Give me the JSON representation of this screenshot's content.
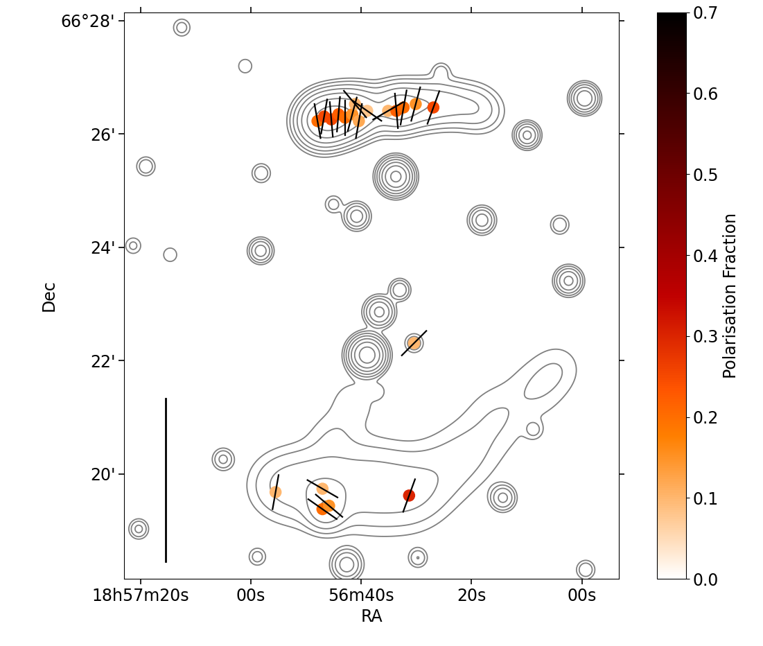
{
  "chart_data": {
    "type": "contour",
    "x_label": "RA",
    "y_label": "Dec",
    "xlim": [
      82.9,
      -6.7
    ],
    "xticks": [
      {
        "value": 80,
        "label": "18h57m20s"
      },
      {
        "value": 60,
        "label": "00s"
      },
      {
        "value": 40,
        "label": "56m40s"
      },
      {
        "value": 20,
        "label": "20s"
      },
      {
        "value": 0,
        "label": "00s"
      }
    ],
    "ylim": [
      18.15,
      28.15
    ],
    "yticks": [
      {
        "value": 28,
        "label": "66°28'"
      },
      {
        "value": 26,
        "label": "26'"
      },
      {
        "value": 24,
        "label": "24'"
      },
      {
        "value": 22,
        "label": "22'"
      },
      {
        "value": 20,
        "label": "20'"
      }
    ],
    "contour_levels": [
      1,
      2,
      4,
      8,
      16,
      32,
      64
    ],
    "color": "#808080",
    "sources": [
      {
        "ra": 47.5,
        "dec": 26.22,
        "peak": 30,
        "size": 0.22
      },
      {
        "ra": 46.4,
        "dec": 26.26,
        "peak": 40,
        "size": 0.22
      },
      {
        "ra": 44.5,
        "dec": 26.3,
        "peak": 35,
        "size": 0.22
      },
      {
        "ra": 42.6,
        "dec": 26.35,
        "peak": 30,
        "size": 0.22
      },
      {
        "ra": 40.5,
        "dec": 26.4,
        "peak": 14,
        "size": 0.22
      },
      {
        "ra": 38.9,
        "dec": 26.41,
        "peak": 8,
        "size": 0.22
      },
      {
        "ra": 35.1,
        "dec": 26.45,
        "peak": 8,
        "size": 0.22
      },
      {
        "ra": 33.0,
        "dec": 26.47,
        "peak": 16,
        "size": 0.22
      },
      {
        "ra": 30.5,
        "dec": 26.5,
        "peak": 8,
        "size": 0.22
      },
      {
        "ra": 27.5,
        "dec": 26.53,
        "peak": 10,
        "size": 0.22
      },
      {
        "ra": 23.8,
        "dec": 26.53,
        "peak": 8,
        "size": 0.22
      },
      {
        "ra": 20.0,
        "dec": 26.48,
        "peak": 6,
        "size": 0.22
      },
      {
        "ra": 17.5,
        "dec": 26.4,
        "peak": 3,
        "size": 0.22
      },
      {
        "ra": 55.2,
        "dec": 19.8,
        "peak": 3,
        "size": 0.35
      },
      {
        "ra": 50.2,
        "dec": 19.8,
        "peak": 4,
        "size": 0.4
      },
      {
        "ra": 46.4,
        "dec": 19.38,
        "peak": 12,
        "size": 0.2
      },
      {
        "ra": 46.0,
        "dec": 19.75,
        "peak": 4,
        "size": 0.35
      },
      {
        "ra": 40.1,
        "dec": 19.8,
        "peak": 4,
        "size": 0.45
      },
      {
        "ra": 35.1,
        "dec": 19.75,
        "peak": 3,
        "size": 0.45
      },
      {
        "ra": 30.1,
        "dec": 19.68,
        "peak": 3,
        "size": 0.4
      },
      {
        "ra": 25.0,
        "dec": 20.05,
        "peak": 2,
        "size": 0.4
      },
      {
        "ra": 20.0,
        "dec": 20.42,
        "peak": 1.8,
        "size": 0.4
      },
      {
        "ra": 15.0,
        "dec": 21.03,
        "peak": 1.8,
        "size": 0.4
      },
      {
        "ra": 8.0,
        "dec": 21.52,
        "peak": 1.8,
        "size": 0.35
      },
      {
        "ra": 4.2,
        "dec": 21.88,
        "peak": 1.5,
        "size": 0.3
      },
      {
        "ra": 41.4,
        "dec": 21.27,
        "peak": 1.6,
        "size": 0.3
      },
      {
        "ra": 45.2,
        "dec": 20.66,
        "peak": 1.6,
        "size": 0.3
      },
      {
        "ra": 33.7,
        "dec": 25.25,
        "peak": 80,
        "size": 0.14
      },
      {
        "ra": 36.7,
        "dec": 22.86,
        "peak": 20,
        "size": 0.13
      },
      {
        "ra": 38.9,
        "dec": 22.1,
        "peak": 100,
        "size": 0.15
      },
      {
        "ra": 9.9,
        "dec": 25.98,
        "peak": 20,
        "size": 0.11
      },
      {
        "ra": -0.5,
        "dec": 26.63,
        "peak": 30,
        "size": 0.12
      },
      {
        "ra": 2.4,
        "dec": 23.41,
        "peak": 20,
        "size": 0.12
      },
      {
        "ra": 18.1,
        "dec": 24.48,
        "peak": 12,
        "size": 0.12
      },
      {
        "ra": 40.8,
        "dec": 24.55,
        "peak": 12,
        "size": 0.12
      },
      {
        "ra": 58.1,
        "dec": 25.31,
        "peak": 4,
        "size": 0.1
      },
      {
        "ra": 79.0,
        "dec": 25.43,
        "peak": 4,
        "size": 0.1
      },
      {
        "ra": 72.5,
        "dec": 27.88,
        "peak": 3,
        "size": 0.1
      },
      {
        "ra": 33.0,
        "dec": 23.25,
        "peak": 8,
        "size": 0.1
      },
      {
        "ra": 30.4,
        "dec": 22.31,
        "peak": 4,
        "size": 0.1
      },
      {
        "ra": 14.3,
        "dec": 19.58,
        "peak": 10,
        "size": 0.12
      },
      {
        "ra": 29.7,
        "dec": 18.52,
        "peak": 4,
        "size": 0.1
      },
      {
        "ra": 42.6,
        "dec": 18.4,
        "peak": 12,
        "size": 0.14
      },
      {
        "ra": -0.7,
        "dec": 18.31,
        "peak": 4,
        "size": 0.1
      },
      {
        "ra": 80.3,
        "dec": 19.03,
        "peak": 5,
        "size": 0.1
      },
      {
        "ra": 65.0,
        "dec": 20.26,
        "peak": 5,
        "size": 0.11
      },
      {
        "ra": 58.2,
        "dec": 23.94,
        "peak": 12,
        "size": 0.11
      },
      {
        "ra": 74.6,
        "dec": 23.87,
        "peak": 2,
        "size": 0.1
      },
      {
        "ra": 81.3,
        "dec": 24.03,
        "peak": 2.5,
        "size": 0.1
      },
      {
        "ra": 37.0,
        "dec": 21.46,
        "peak": 1.5,
        "size": 0.1
      },
      {
        "ra": 45.0,
        "dec": 24.76,
        "peak": 3,
        "size": 0.1
      },
      {
        "ra": 58.8,
        "dec": 18.54,
        "peak": 3,
        "size": 0.1
      },
      {
        "ra": 8.7,
        "dec": 20.78,
        "peak": 2.5,
        "size": 0.1
      },
      {
        "ra": 4.0,
        "dec": 24.4,
        "peak": 4,
        "size": 0.1
      },
      {
        "ra": 61.0,
        "dec": 27.2,
        "peak": 2,
        "size": 0.1
      },
      {
        "ra": 25.5,
        "dec": 27.1,
        "peak": 3,
        "size": 0.1
      }
    ],
    "polarisation_vectors": [
      {
        "ra": 47.9,
        "dec": 26.23,
        "angle": 10,
        "fraction": 0.2
      },
      {
        "ra": 46.7,
        "dec": 26.31,
        "angle": -10,
        "fraction": 0.25
      },
      {
        "ra": 45.4,
        "dec": 26.26,
        "angle": 5,
        "fraction": 0.25
      },
      {
        "ra": 44.1,
        "dec": 26.35,
        "angle": -5,
        "fraction": 0.22
      },
      {
        "ra": 42.9,
        "dec": 26.29,
        "angle": 0,
        "fraction": 0.2
      },
      {
        "ra": 41.6,
        "dec": 26.35,
        "angle": -15,
        "fraction": 0.15
      },
      {
        "ra": 40.4,
        "dec": 26.23,
        "angle": -10,
        "fraction": 0.12
      },
      {
        "ra": 41.1,
        "dec": 26.53,
        "angle": 40,
        "fraction": 0.1
      },
      {
        "ra": 38.9,
        "dec": 26.41,
        "angle": 55,
        "fraction": 0.08
      },
      {
        "ra": 35.1,
        "dec": 26.41,
        "angle": -60,
        "fraction": 0.1
      },
      {
        "ra": 33.6,
        "dec": 26.41,
        "angle": 5,
        "fraction": 0.22
      },
      {
        "ra": 32.3,
        "dec": 26.47,
        "angle": -10,
        "fraction": 0.2
      },
      {
        "ra": 30.1,
        "dec": 26.53,
        "angle": -15,
        "fraction": 0.15
      },
      {
        "ra": 26.9,
        "dec": 26.47,
        "angle": -20,
        "fraction": 0.25
      },
      {
        "ra": 55.5,
        "dec": 19.68,
        "angle": -10,
        "fraction": 0.1
      },
      {
        "ra": 47.0,
        "dec": 19.74,
        "angle": 60,
        "fraction": 0.1
      },
      {
        "ra": 47.0,
        "dec": 19.38,
        "angle": 55,
        "fraction": 0.2
      },
      {
        "ra": 45.8,
        "dec": 19.44,
        "angle": 50,
        "fraction": 0.15
      },
      {
        "ra": 31.3,
        "dec": 19.62,
        "angle": -20,
        "fraction": 0.3
      },
      {
        "ra": 30.4,
        "dec": 22.31,
        "angle": -45,
        "fraction": 0.1
      }
    ],
    "colorbar_label": "Polarisation Fraction",
    "colorbar_range": [
      0,
      0.7
    ],
    "colorbar_ticks": [
      {
        "value": 0,
        "label": "0.0"
      },
      {
        "value": 0.1,
        "label": "0.1"
      },
      {
        "value": 0.2,
        "label": "0.2"
      },
      {
        "value": 0.3,
        "label": "0.3"
      },
      {
        "value": 0.4,
        "label": "0.4"
      },
      {
        "value": 0.5,
        "label": "0.5"
      },
      {
        "value": 0.6,
        "label": "0.6"
      },
      {
        "value": 0.7,
        "label": "0.7"
      }
    ]
  }
}
